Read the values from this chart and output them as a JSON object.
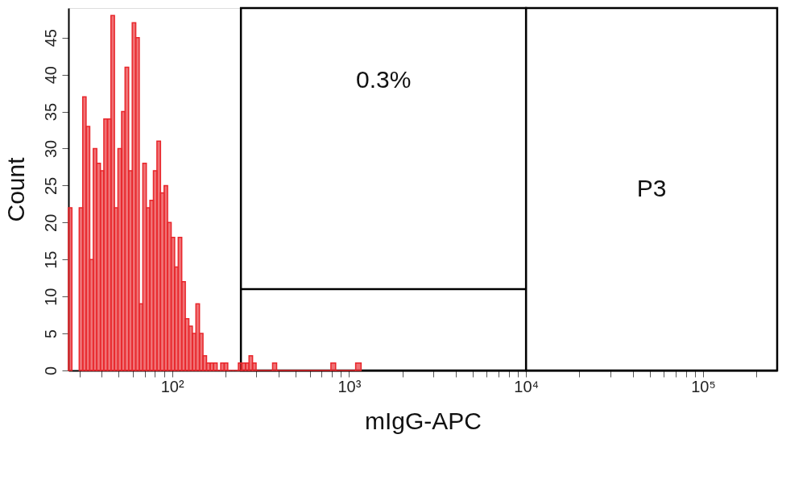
{
  "chart_data": {
    "type": "histogram",
    "xlabel": "mIgG-APC",
    "ylabel": "Count",
    "color": "#e8262b",
    "log": "x",
    "grid": false,
    "bins": [
      26.0,
      27.2,
      29.9,
      31.3,
      32.7,
      34.3,
      35.9,
      37.6,
      39.4,
      41.2,
      43.2,
      45.2,
      47.3,
      49.5,
      51.9,
      54.3,
      56.9,
      59.6,
      62.4,
      65.3,
      68.4,
      71.6,
      75.0,
      78.5,
      82.2,
      86.1,
      90.2,
      94.4,
      98.9,
      103.5,
      108.4,
      113.5,
      118.9,
      124.5,
      130.3,
      136.5,
      142.9,
      149.6,
      156.7,
      164.1,
      171.8,
      179.9,
      188.4,
      197.2,
      206.5,
      216.3,
      226.5,
      237.1,
      248.3,
      260.0,
      272.3,
      285.1,
      298.5,
      370,
      390,
      790,
      840,
      1090,
      1170
    ],
    "values": [
      22,
      null,
      22,
      37,
      33,
      15,
      30,
      28,
      27,
      34,
      34,
      48,
      22,
      30,
      35,
      41,
      27,
      47,
      45,
      9,
      28,
      22,
      23,
      27,
      31,
      24,
      25,
      20,
      18,
      14,
      18,
      12,
      7,
      6,
      5,
      9,
      5,
      2,
      1,
      1,
      1,
      0,
      1,
      1,
      0,
      0,
      0,
      1,
      1,
      1,
      2,
      1,
      0,
      1,
      0,
      1,
      0,
      1
    ],
    "series": [
      {
        "type": "line",
        "color": "#000000",
        "x": [
          245,
          10000
        ],
        "values": [
          11,
          11
        ]
      }
    ],
    "bands": [
      {
        "axis": "x",
        "from": 245,
        "to": 10000,
        "label": "0.3%"
      },
      {
        "axis": "x",
        "from": 10000,
        "to": 262144,
        "label": "P3"
      }
    ],
    "xlim": [
      26,
      262144
    ],
    "ylim": [
      0,
      49
    ],
    "yticks": [
      0,
      5,
      10,
      15,
      20,
      25,
      30,
      35,
      40,
      45
    ],
    "xticks": [
      {
        "value": 30,
        "label": null
      },
      {
        "value": 40,
        "label": null
      },
      {
        "value": 50,
        "label": null
      },
      {
        "value": 60,
        "label": null
      },
      {
        "value": 70,
        "label": null
      },
      {
        "value": 80,
        "label": null
      },
      {
        "value": 90,
        "label": null
      },
      {
        "value": 100,
        "label": "10²"
      },
      {
        "value": 200,
        "label": null
      },
      {
        "value": 300,
        "label": null
      },
      {
        "value": 400,
        "label": null
      },
      {
        "value": 500,
        "label": null
      },
      {
        "value": 600,
        "label": null
      },
      {
        "value": 700,
        "label": null
      },
      {
        "value": 800,
        "label": null
      },
      {
        "value": 900,
        "label": null
      },
      {
        "value": 1000,
        "label": "10³"
      },
      {
        "value": 2000,
        "label": null
      },
      {
        "value": 3000,
        "label": null
      },
      {
        "value": 4000,
        "label": null
      },
      {
        "value": 5000,
        "label": null
      },
      {
        "value": 6000,
        "label": null
      },
      {
        "value": 7000,
        "label": null
      },
      {
        "value": 8000,
        "label": null
      },
      {
        "value": 9000,
        "label": null
      },
      {
        "value": 10000,
        "label": "10⁴"
      },
      {
        "value": 20000,
        "label": null
      },
      {
        "value": 30000,
        "label": null
      },
      {
        "value": 40000,
        "label": null
      },
      {
        "value": 50000,
        "label": null
      },
      {
        "value": 60000,
        "label": null
      },
      {
        "value": 70000,
        "label": null
      },
      {
        "value": 80000,
        "label": null
      },
      {
        "value": 90000,
        "label": null
      },
      {
        "value": 100000,
        "label": "10⁵"
      },
      {
        "value": 200000,
        "label": null
      }
    ]
  }
}
